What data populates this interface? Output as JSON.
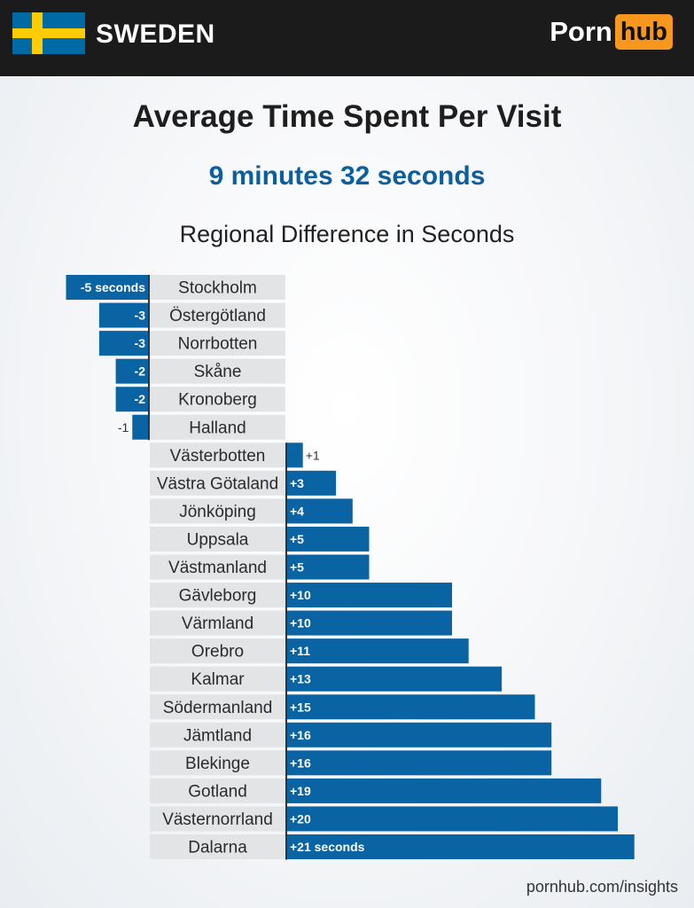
{
  "header": {
    "country": "SWEDEN",
    "logo_word1": "Porn",
    "logo_word2": "hub",
    "flag_icon": "sweden-flag-icon"
  },
  "title": "Average Time Spent Per Visit",
  "subtitle": "9 minutes 32 seconds",
  "section_title": "Regional Difference in Seconds",
  "footer": "pornhub.com/insights",
  "colors": {
    "bar": "#0a64a4",
    "label_bg": "#e3e4e6",
    "accent": "#f7971d"
  },
  "chart_data": {
    "type": "bar",
    "orientation": "horizontal",
    "unit": "seconds",
    "categories": [
      "Stockholm",
      "Östergötland",
      "Norrbotten",
      "Skåne",
      "Kronoberg",
      "Halland",
      "Västerbotten",
      "Västra Götaland",
      "Jönköping",
      "Uppsala",
      "Västmanland",
      "Gävleborg",
      "Värmland",
      "Orebro",
      "Kalmar",
      "Södermanland",
      "Jämtland",
      "Blekinge",
      "Gotland",
      "Västernorrland",
      "Dalarna"
    ],
    "values": [
      -5,
      -3,
      -3,
      -2,
      -2,
      -1,
      1,
      3,
      4,
      5,
      5,
      10,
      10,
      11,
      13,
      15,
      16,
      16,
      19,
      20,
      21
    ],
    "value_labels": [
      "-5 seconds",
      "-3",
      "-3",
      "-2",
      "-2",
      "-1",
      "+1",
      "+3",
      "+4",
      "+5",
      "+5",
      "+10",
      "+10",
      "+11",
      "+13",
      "+15",
      "+16",
      "+16",
      "+19",
      "+20",
      "+21 seconds"
    ]
  }
}
